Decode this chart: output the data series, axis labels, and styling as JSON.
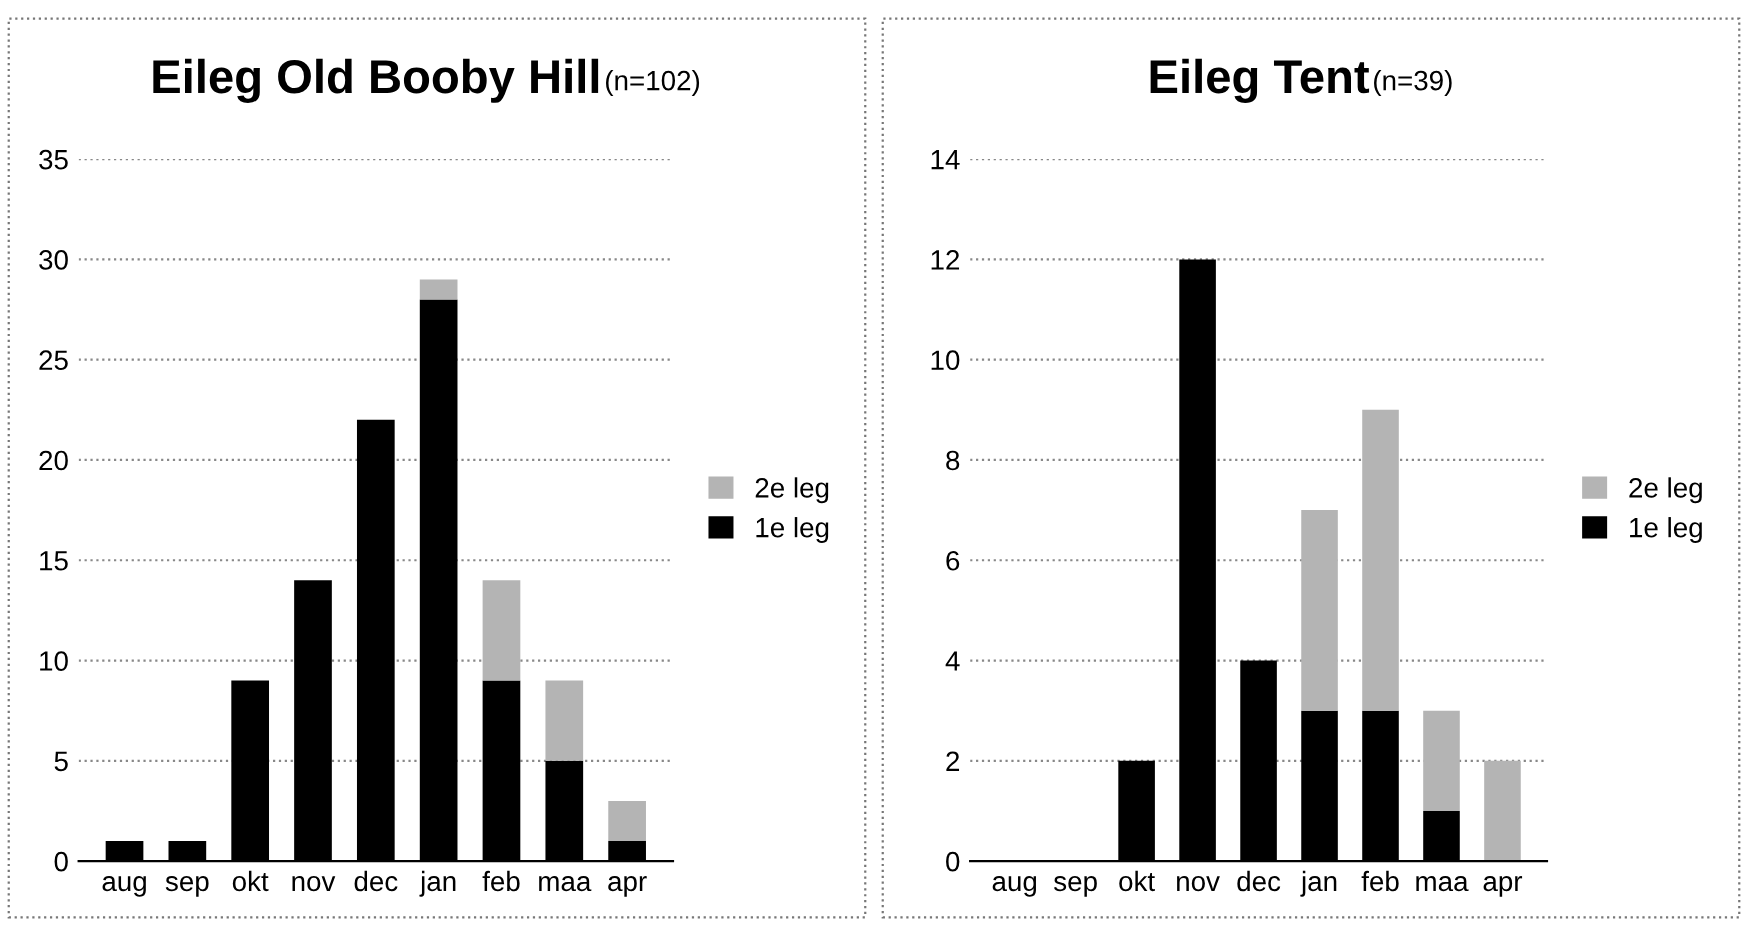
{
  "chart_data": [
    {
      "type": "bar",
      "stacked": true,
      "title": "Eileg Old Booby Hill",
      "subtitle": "(n=102)",
      "categories": [
        "aug",
        "sep",
        "okt",
        "nov",
        "dec",
        "jan",
        "feb",
        "maa",
        "apr"
      ],
      "series": [
        {
          "name": "1e leg",
          "color": "#000000",
          "values": [
            1,
            1,
            9,
            14,
            22,
            28,
            9,
            5,
            1
          ]
        },
        {
          "name": "2e leg",
          "color": "#b4b4b4",
          "values": [
            0,
            0,
            0,
            0,
            0,
            1,
            5,
            4,
            2
          ]
        }
      ],
      "ylim": [
        0,
        35
      ],
      "yticks": [
        0,
        5,
        10,
        15,
        20,
        25,
        30,
        35
      ],
      "grid": "y",
      "legend": "right"
    },
    {
      "type": "bar",
      "stacked": true,
      "title": "Eileg Tent",
      "subtitle": "(n=39)",
      "categories": [
        "aug",
        "sep",
        "okt",
        "nov",
        "dec",
        "jan",
        "feb",
        "maa",
        "apr"
      ],
      "series": [
        {
          "name": "1e leg",
          "color": "#000000",
          "values": [
            0,
            0,
            2,
            12,
            4,
            3,
            3,
            1,
            0
          ]
        },
        {
          "name": "2e leg",
          "color": "#b4b4b4",
          "values": [
            0,
            0,
            0,
            0,
            0,
            4,
            6,
            2,
            2
          ]
        }
      ],
      "ylim": [
        0,
        14
      ],
      "yticks": [
        0,
        2,
        4,
        6,
        8,
        10,
        12,
        14
      ],
      "grid": "y",
      "legend": "right"
    }
  ]
}
